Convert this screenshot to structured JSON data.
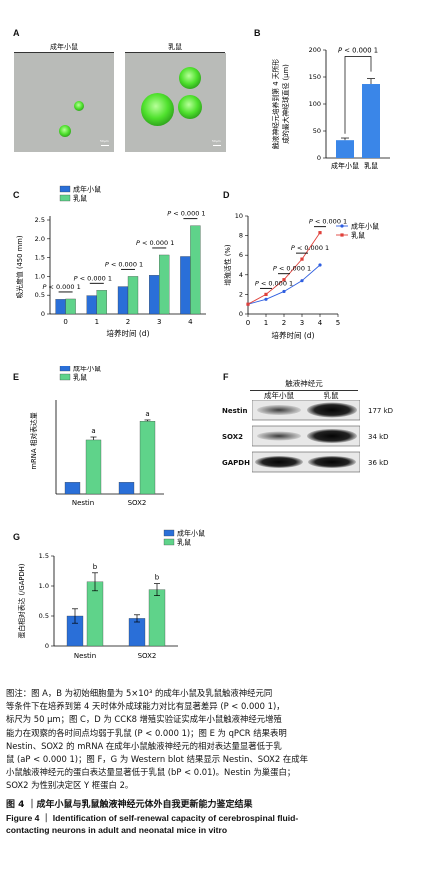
{
  "panels": {
    "A": {
      "letter": "A",
      "image_labels": [
        "成年小鼠",
        "乳鼠"
      ],
      "scale_text": "50μm"
    },
    "B": {
      "letter": "B"
    },
    "C": {
      "letter": "C"
    },
    "D": {
      "letter": "D"
    },
    "E": {
      "letter": "E"
    },
    "F": {
      "letter": "F",
      "header": "触液神经元",
      "group_labels": [
        "成年小鼠",
        "乳鼠"
      ],
      "bands": [
        {
          "name": "Nestin",
          "size": "177 kD"
        },
        {
          "name": "SOX2",
          "size": "34 kD"
        },
        {
          "name": "GAPDH",
          "size": "36 kD"
        }
      ]
    },
    "G": {
      "letter": "G"
    }
  },
  "chart_data": [
    {
      "panel": "B",
      "type": "bar",
      "categories": [
        "成年小鼠",
        "乳鼠"
      ],
      "values": [
        33,
        137
      ],
      "errors": [
        4,
        10
      ],
      "ylabel": "触液神经元培养到第 4 天所形成的最大神经球直径 (μm)",
      "ylim": [
        0,
        200
      ],
      "yticks": [
        0,
        50,
        100,
        150,
        200
      ],
      "annotation": "P < 0.000 1",
      "color": "#3a86e8"
    },
    {
      "panel": "C",
      "type": "bar",
      "categories": [
        "0",
        "1",
        "2",
        "3",
        "4"
      ],
      "series": [
        {
          "name": "成年小鼠",
          "values": [
            0.39,
            0.49,
            0.73,
            1.03,
            1.53
          ],
          "color": "#2a6fd8"
        },
        {
          "name": "乳鼠",
          "values": [
            0.4,
            0.63,
            1.0,
            1.57,
            2.35
          ],
          "color": "#5fd38a"
        }
      ],
      "xlabel": "培养时间 (d)",
      "ylabel": "吸光度值 (450 mm)",
      "ylim": [
        0,
        2.5
      ],
      "yticks": [
        0,
        0.5,
        1.0,
        1.5,
        2.0,
        2.5
      ],
      "ytick_labels": [
        "0",
        "0.5",
        "1.0",
        "1.5",
        "2.0",
        "2.5"
      ],
      "annotations": [
        "P < 0.000 1",
        "P < 0.000 1",
        "P < 0.000 1",
        "P < 0.000 1",
        "P < 0.000 1"
      ],
      "legend": "top-left"
    },
    {
      "panel": "D",
      "type": "line",
      "x": [
        0,
        1,
        2,
        3,
        4
      ],
      "series": [
        {
          "name": "成年小鼠",
          "values": [
            1.0,
            1.5,
            2.3,
            3.4,
            5.0
          ],
          "color": "#2e5ee0"
        },
        {
          "name": "乳鼠",
          "values": [
            1.0,
            2.0,
            3.5,
            5.6,
            8.3
          ],
          "color": "#e0403a"
        }
      ],
      "xlabel": "培养时间 (d)",
      "ylabel": "增殖活性 (%)",
      "xlim": [
        0,
        5
      ],
      "ylim": [
        0,
        10
      ],
      "xticks": [
        0,
        1,
        2,
        3,
        4,
        5
      ],
      "yticks": [
        0,
        2,
        4,
        6,
        8,
        10
      ],
      "annotations": [
        "P < 0.000 1",
        "P < 0.000 1",
        "P < 0.000 1",
        "P < 0.000 1"
      ],
      "legend": "right"
    },
    {
      "panel": "E",
      "type": "bar",
      "categories": [
        "Nestin",
        "SOX2"
      ],
      "series": [
        {
          "name": "成年小鼠",
          "values": [
            1.0,
            1.0
          ],
          "color": "#2a6fd8"
        },
        {
          "name": "乳鼠",
          "values": [
            4.6,
            6.2
          ],
          "errors": [
            0.25,
            0.1
          ],
          "color": "#5fd38a"
        }
      ],
      "ylabel": "mRNA 相对表达量",
      "ylim": [
        0,
        8
      ],
      "annotations": [
        "a",
        "a"
      ],
      "legend": "top-left"
    },
    {
      "panel": "G",
      "type": "bar",
      "categories": [
        "Nestin",
        "SOX2"
      ],
      "series": [
        {
          "name": "成年小鼠",
          "values": [
            0.5,
            0.46
          ],
          "errors": [
            0.12,
            0.06
          ],
          "color": "#2a6fd8"
        },
        {
          "name": "乳鼠",
          "values": [
            1.07,
            0.94
          ],
          "errors": [
            0.15,
            0.1
          ],
          "color": "#5fd38a"
        }
      ],
      "ylabel": "蛋白相对表达 (/GAPDH)",
      "ylim": [
        0,
        1.5
      ],
      "yticks": [
        0,
        0.5,
        1.0,
        1.5
      ],
      "ytick_labels": [
        "0",
        "0.5",
        "1.0",
        "1.5"
      ],
      "annotations": [
        "b",
        "b"
      ],
      "legend": "top-left"
    }
  ],
  "caption": {
    "lines": [
      "图注：图 A，B 为初始细胞量为 5×10³ 的成年小鼠及乳鼠触液神经元同",
      "等条件下在培养到第 4 天时体外成球能力对比有显著差异 (P < 0.000 1)，",
      "标尺为 50 μm；图 C，D 为 CCK8 增殖实验证实成年小鼠触液神经元增殖",
      "能力在观察的各时间点均弱于乳鼠 (P < 0.000 1)；图 E 为 qPCR 结果表明",
      "Nestin、SOX2 的 mRNA 在成年小鼠触液神经元的相对表达量显著低于乳",
      "鼠 (aP < 0.000 1)；图 F，G 为 Western blot 结果显示 Nestin、SOX2 在成年",
      "小鼠触液神经元的蛋白表达量显著低于乳鼠 (bP < 0.01)。Nestin 为巢蛋白；",
      "SOX2 为性别决定区 Y 框蛋白 2。"
    ],
    "figure_title_cn": "图 4 ｜成年小鼠与乳鼠触液神经元体外自我更新能力鉴定结果",
    "figure_title_en_1": "Figure 4 ｜ Identification of self-renewal capacity of cerebrospinal fluid-",
    "figure_title_en_2": "contacting neurons in adult and neonatal mice in vitro"
  }
}
